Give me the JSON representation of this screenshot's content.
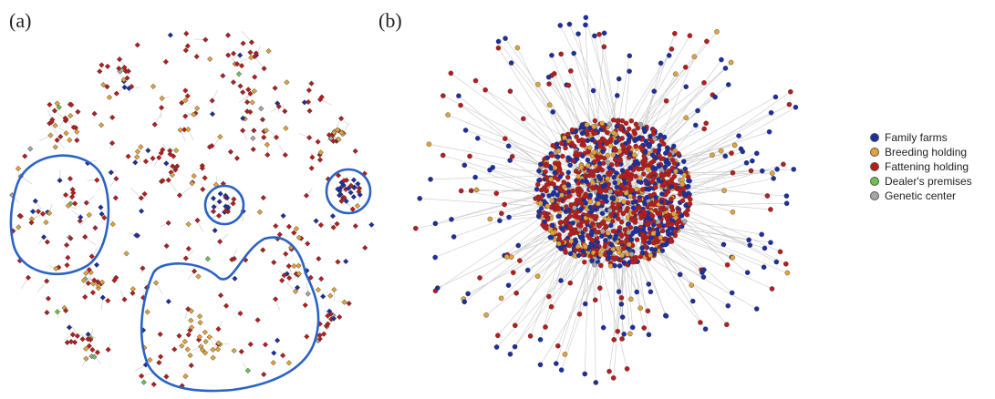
{
  "panels": {
    "a": {
      "label": "(a)"
    },
    "b": {
      "label": "(b)"
    }
  },
  "legend": {
    "items": [
      {
        "label": "Family farms",
        "color": "#1c2fa0"
      },
      {
        "label": "Breeding holding",
        "color": "#e0a43a"
      },
      {
        "label": "Fattening holding",
        "color": "#b81c1c"
      },
      {
        "label": "Dealer's premises",
        "color": "#6cc24a"
      },
      {
        "label": "Genetic center",
        "color": "#a6a6a6"
      }
    ]
  },
  "colors": {
    "community_outline": "#2a63c6",
    "edge": "#c9c9c9",
    "node_border": "#3a3a3a"
  }
}
